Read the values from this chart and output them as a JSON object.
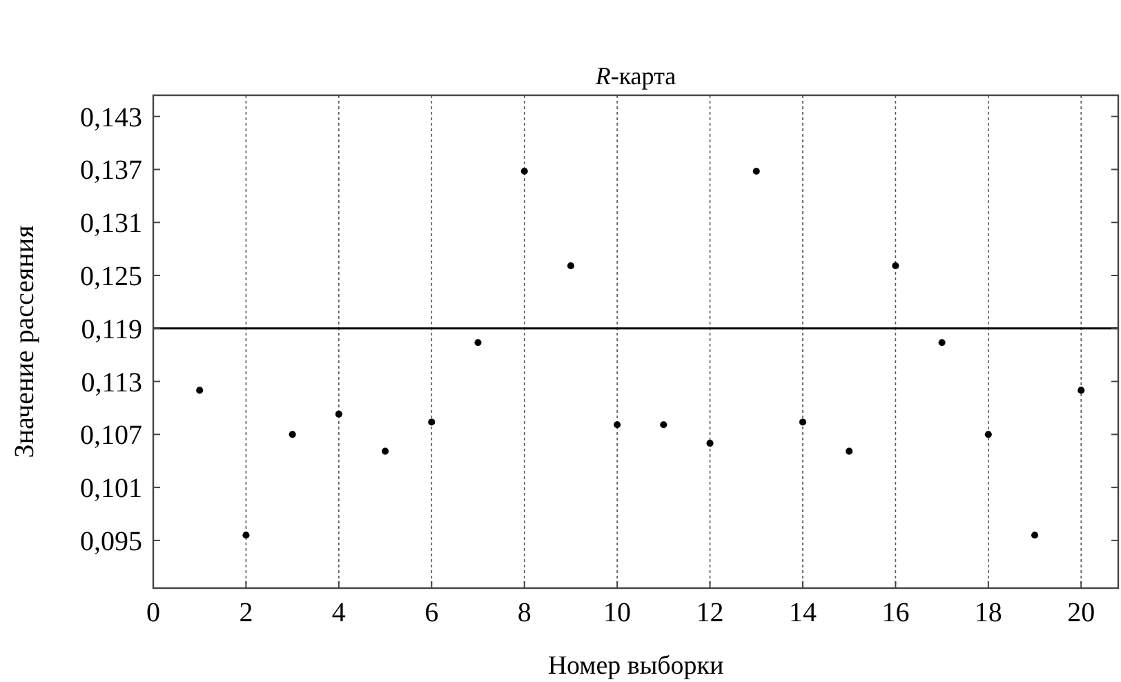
{
  "chart_data": {
    "type": "scatter",
    "title": "R-карта",
    "xlabel": "Номер выборки",
    "ylabel": "Значение рассеяния",
    "x": [
      1,
      2,
      3,
      4,
      5,
      6,
      7,
      8,
      9,
      10,
      11,
      12,
      13,
      14,
      15,
      16,
      17,
      18,
      19,
      20
    ],
    "series": [
      {
        "color": "#000000",
        "values": [
          0.112,
          0.0956,
          0.107,
          0.1093,
          0.1051,
          0.1084,
          0.1174,
          0.1368,
          0.1261,
          0.1081,
          0.1081,
          0.106,
          0.1368,
          0.1084,
          0.1051,
          0.1261,
          0.1174,
          0.107,
          0.0956,
          0.112
        ]
      }
    ],
    "xlim": [
      0,
      20.8
    ],
    "xticks": [
      0,
      2,
      4,
      6,
      8,
      10,
      12,
      14,
      16,
      18,
      20
    ],
    "ylim": [
      0.0896,
      0.1454
    ],
    "yticks": [
      {
        "value": 0.095,
        "label": "0,095"
      },
      {
        "value": 0.101,
        "label": "0,101"
      },
      {
        "value": 0.107,
        "label": "0,107"
      },
      {
        "value": 0.113,
        "label": "0,113"
      },
      {
        "value": 0.119,
        "label": "0,119"
      },
      {
        "value": 0.125,
        "label": "0,125"
      },
      {
        "value": 0.131,
        "label": "0,131"
      },
      {
        "value": 0.137,
        "label": "0,137"
      },
      {
        "value": 0.143,
        "label": "0,143"
      }
    ],
    "ref_lines": [
      {
        "axis": "y",
        "value": 0.119,
        "color": "#000000"
      }
    ],
    "grid": "x",
    "marker": "circle"
  }
}
